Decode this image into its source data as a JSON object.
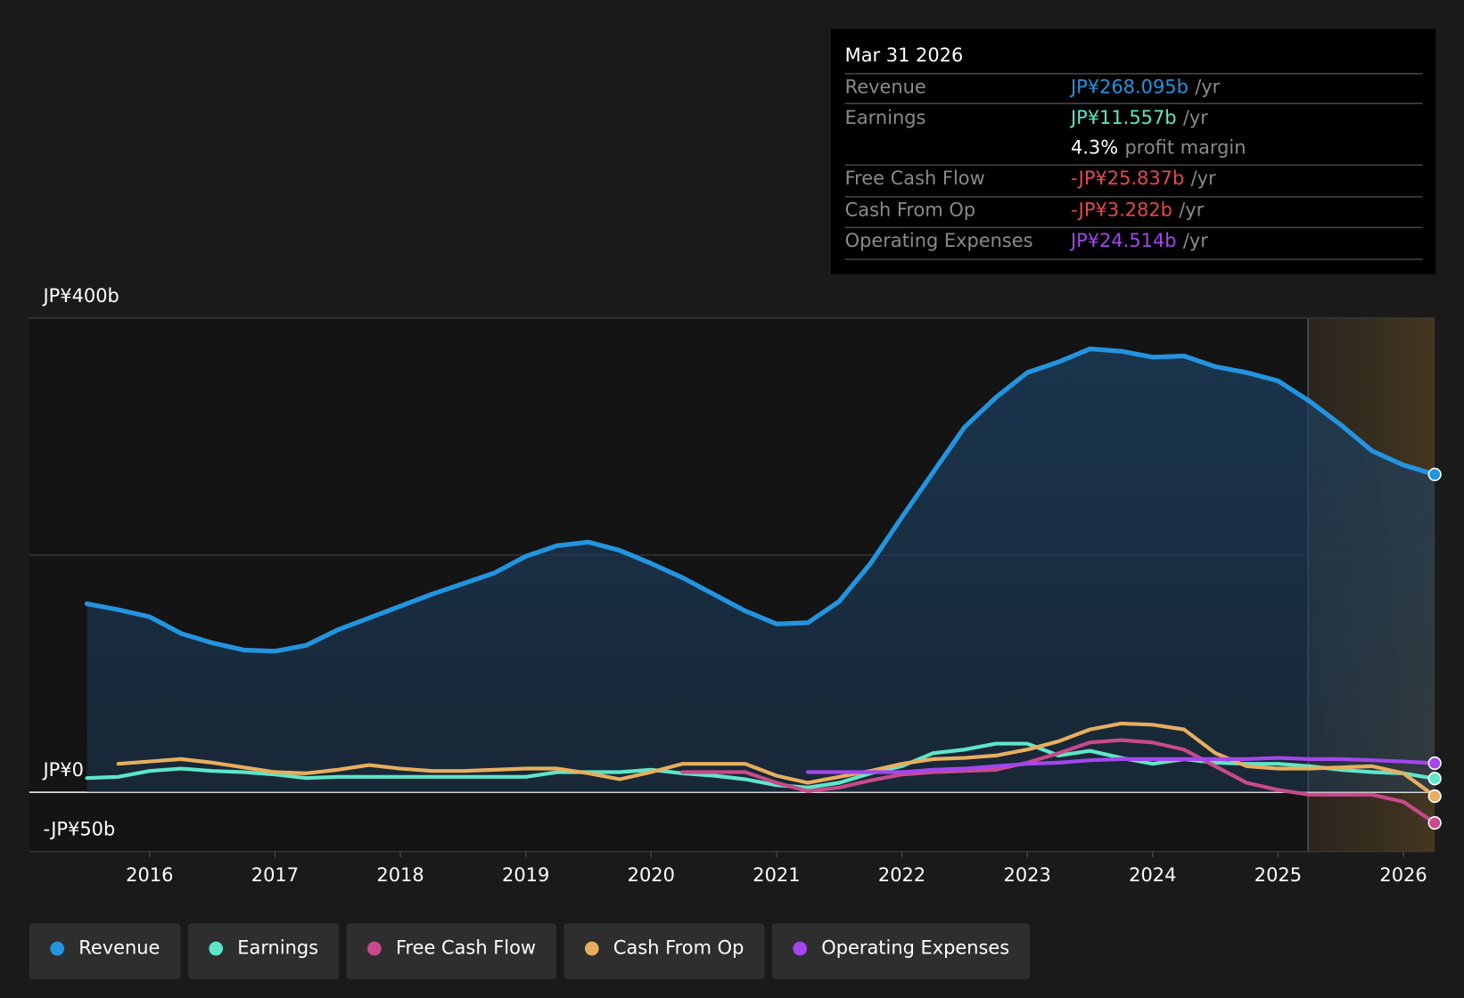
{
  "chart_data": {
    "type": "line",
    "xlim": [
      2015.04,
      2026.25
    ],
    "xticks": [
      2016,
      2017,
      2018,
      2019,
      2020,
      2021,
      2022,
      2023,
      2024,
      2025,
      2026
    ],
    "ylim": [
      -50,
      400
    ],
    "yticks": [
      {
        "value": -50,
        "label": "-JP¥50b"
      },
      {
        "value": 0,
        "label": "JP¥0"
      },
      {
        "value": 200,
        "label": null
      },
      {
        "value": 400,
        "label": "JP¥400b"
      }
    ],
    "forecast_start": 2025.24,
    "x": [
      2015.5,
      2015.75,
      2016,
      2016.25,
      2016.5,
      2016.75,
      2017,
      2017.25,
      2017.5,
      2017.75,
      2018,
      2018.25,
      2018.5,
      2018.75,
      2019,
      2019.25,
      2019.5,
      2019.75,
      2020,
      2020.25,
      2020.5,
      2020.75,
      2021,
      2021.25,
      2021.5,
      2021.75,
      2022,
      2022.25,
      2022.5,
      2022.75,
      2023,
      2023.25,
      2023.5,
      2023.75,
      2024,
      2024.25,
      2024.5,
      2024.75,
      2025,
      2025.25,
      2025.5,
      2025.75,
      2026,
      2026.25
    ],
    "series": [
      {
        "name": "Revenue",
        "color": "#2394df",
        "values": [
          159,
          154,
          148,
          134,
          126,
          120,
          119,
          124,
          137,
          147,
          157,
          167,
          176,
          185,
          199,
          208,
          211,
          204,
          193,
          181,
          167,
          153,
          142,
          143,
          161,
          193,
          232,
          270,
          308,
          333,
          354,
          363,
          374,
          372,
          367,
          368,
          359,
          354,
          347,
          330,
          310,
          288,
          276,
          268.095
        ]
      },
      {
        "name": "Earnings",
        "color": "#5ee6c8",
        "values": [
          12,
          13,
          18,
          20,
          18,
          17,
          15,
          12,
          13,
          13,
          13,
          13,
          13,
          13,
          13,
          17,
          17,
          17,
          19,
          16,
          14,
          11,
          6,
          4,
          8,
          16,
          22,
          33,
          36,
          41,
          41,
          31,
          35,
          29,
          24,
          28,
          25,
          24,
          24,
          22,
          19,
          17,
          16,
          11.557
        ]
      },
      {
        "name": "Free Cash Flow",
        "color": "#c84a8a",
        "values": [
          null,
          null,
          null,
          null,
          null,
          null,
          null,
          null,
          null,
          null,
          null,
          null,
          null,
          null,
          null,
          null,
          null,
          null,
          null,
          17,
          17,
          17,
          8,
          1,
          4,
          10,
          15,
          17,
          18,
          19,
          25,
          33,
          42,
          44,
          42,
          36,
          22,
          8,
          2,
          -2,
          -2,
          -2,
          -8,
          -25.837
        ]
      },
      {
        "name": "Cash From Op",
        "color": "#e8ae5e",
        "values": [
          null,
          24,
          26,
          28,
          25,
          21,
          17,
          16,
          19,
          23,
          20,
          18,
          18,
          19,
          20,
          20,
          16,
          11,
          17,
          24,
          24,
          24,
          14,
          8,
          13,
          18,
          24,
          28,
          29,
          31,
          36,
          43,
          53,
          58,
          57,
          53,
          33,
          22,
          20,
          20,
          21,
          22,
          16,
          -3.282
        ]
      },
      {
        "name": "Operating Expenses",
        "color": "#a346ec",
        "values": [
          null,
          null,
          null,
          null,
          null,
          null,
          null,
          null,
          null,
          null,
          null,
          null,
          null,
          null,
          null,
          null,
          null,
          null,
          null,
          null,
          null,
          null,
          null,
          17,
          17,
          17,
          17,
          19,
          20,
          22,
          24,
          25,
          27,
          28,
          28,
          28,
          28,
          28,
          29,
          28,
          28,
          27,
          26,
          24.514
        ]
      }
    ]
  },
  "tooltip": {
    "title": "Mar 31 2026",
    "rows": [
      {
        "label": "Revenue",
        "value": "JP¥268.095b",
        "unit": "/yr",
        "color": "#2394df"
      },
      {
        "label": "Earnings",
        "value": "JP¥11.557b",
        "unit": "/yr",
        "color": "#5ee6c8"
      },
      {
        "label": "Free Cash Flow",
        "value": "-JP¥25.837b",
        "unit": "/yr",
        "color": "#e5484d"
      },
      {
        "label": "Cash From Op",
        "value": "-JP¥3.282b",
        "unit": "/yr",
        "color": "#e5484d"
      },
      {
        "label": "Operating Expenses",
        "value": "JP¥24.514b",
        "unit": "/yr",
        "color": "#a346ec"
      }
    ],
    "margin": {
      "value": "4.3%",
      "label": "profit margin"
    }
  }
}
